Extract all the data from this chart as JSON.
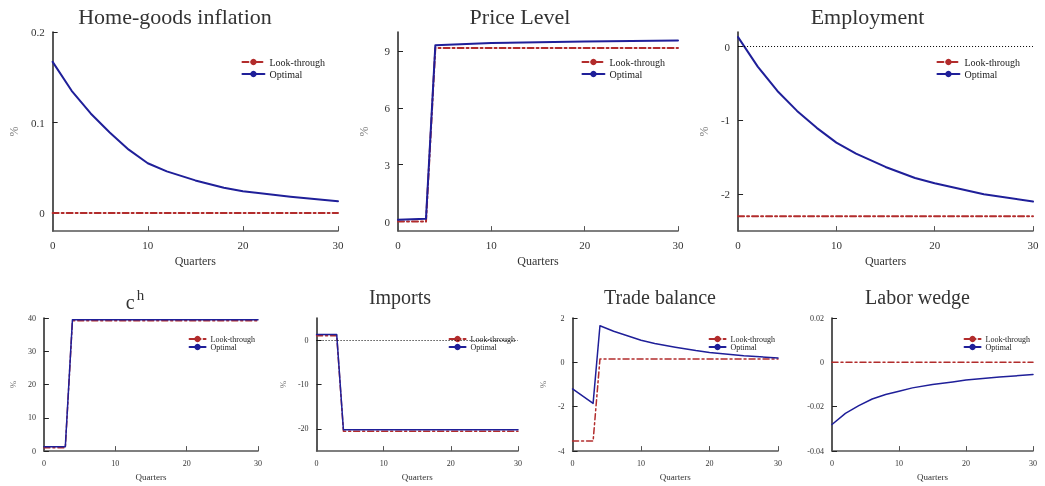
{
  "chart_data": [
    {
      "type": "line",
      "title": "Home-goods inflation",
      "xlabel": "Quarters",
      "ylabel": "%",
      "xlim": [
        0,
        30
      ],
      "xticks": [
        0,
        10,
        20,
        30
      ],
      "ylim": [
        -0.02,
        0.2
      ],
      "yticks": [
        0,
        0.1,
        0.2
      ],
      "legend": "top right",
      "marker": "none",
      "grid": false,
      "series": [
        {
          "name": "Look-through",
          "color": "#b22c2c",
          "line_style": "dashed",
          "x": [
            0,
            30
          ],
          "values": [
            0,
            0
          ]
        },
        {
          "name": "Optimal",
          "color": "#1f1f99",
          "line_style": "solid",
          "x": [
            0,
            2,
            4,
            6,
            8,
            10,
            12,
            15,
            18,
            20,
            25,
            30
          ],
          "values": [
            0.167,
            0.135,
            0.11,
            0.089,
            0.07,
            0.055,
            0.046,
            0.036,
            0.028,
            0.024,
            0.018,
            0.013
          ]
        }
      ]
    },
    {
      "type": "line",
      "title": "Price Level",
      "xlabel": "Quarters",
      "ylabel": "%",
      "xlim": [
        0,
        30
      ],
      "xticks": [
        0,
        10,
        20,
        30
      ],
      "ylim": [
        -0.5,
        10
      ],
      "yticks": [
        0,
        3,
        6,
        9
      ],
      "legend": "top right",
      "marker": "none",
      "grid": false,
      "series": [
        {
          "name": "Look-through",
          "color": "#b22c2c",
          "line_style": "dashed",
          "x": [
            0,
            3,
            4,
            30
          ],
          "values": [
            0,
            0,
            9.15,
            9.15
          ]
        },
        {
          "name": "Optimal",
          "color": "#1f1f99",
          "line_style": "solid",
          "x": [
            0,
            3,
            4,
            10,
            20,
            30
          ],
          "values": [
            0.1,
            0.15,
            9.3,
            9.42,
            9.5,
            9.55
          ]
        }
      ]
    },
    {
      "type": "line",
      "title": "Employment",
      "xlabel": "Quarters",
      "ylabel": "%",
      "xlim": [
        0,
        30
      ],
      "xticks": [
        0,
        10,
        20,
        30
      ],
      "ylim": [
        -2.5,
        0.2
      ],
      "yticks": [
        -2,
        -1,
        0
      ],
      "legend": "top right",
      "marker": "none",
      "grid": false,
      "ref_lines": [
        {
          "axis": "y",
          "value": 0,
          "line_style": "dotted",
          "color": "#000000"
        }
      ],
      "series": [
        {
          "name": "Look-through",
          "color": "#b22c2c",
          "line_style": "dashed",
          "x": [
            0,
            30
          ],
          "values": [
            -2.3,
            -2.3
          ]
        },
        {
          "name": "Optimal",
          "color": "#1f1f99",
          "line_style": "solid",
          "x": [
            0,
            2,
            4,
            6,
            8,
            10,
            12,
            15,
            18,
            20,
            25,
            30
          ],
          "values": [
            0.13,
            -0.27,
            -0.6,
            -0.87,
            -1.1,
            -1.3,
            -1.45,
            -1.63,
            -1.78,
            -1.85,
            -2.0,
            -2.1
          ]
        }
      ]
    },
    {
      "type": "line",
      "title": "c$^{h}$",
      "xlabel": "Quarters",
      "ylabel": "%",
      "xlim": [
        0,
        30
      ],
      "xticks": [
        0,
        10,
        20,
        30
      ],
      "ylim": [
        0,
        40
      ],
      "yticks": [
        0,
        10,
        20,
        30,
        40
      ],
      "legend": "top right",
      "marker": "none",
      "grid": false,
      "series": [
        {
          "name": "Look-through",
          "color": "#b22c2c",
          "line_style": "dashed",
          "x": [
            0,
            3,
            4,
            30
          ],
          "values": [
            1,
            1,
            39.2,
            39.2
          ]
        },
        {
          "name": "Optimal",
          "color": "#1f1f99",
          "line_style": "solid",
          "x": [
            0,
            3,
            4,
            30
          ],
          "values": [
            1.3,
            1.3,
            39.5,
            39.5
          ]
        }
      ]
    },
    {
      "type": "line",
      "title": "Imports",
      "xlabel": "Quarters",
      "ylabel": "%",
      "xlim": [
        0,
        30
      ],
      "xticks": [
        0,
        10,
        20,
        30
      ],
      "ylim": [
        -25,
        5
      ],
      "yticks": [
        -20,
        -10,
        0
      ],
      "legend": "top right",
      "marker": "none",
      "grid": false,
      "ref_lines": [
        {
          "axis": "y",
          "value": 0,
          "line_style": "dotted",
          "color": "#000000"
        }
      ],
      "series": [
        {
          "name": "Look-through",
          "color": "#b22c2c",
          "line_style": "dashed",
          "x": [
            0,
            3,
            4,
            30
          ],
          "values": [
            1,
            1,
            -20.5,
            -20.5
          ]
        },
        {
          "name": "Optimal",
          "color": "#1f1f99",
          "line_style": "solid",
          "x": [
            0,
            3,
            4,
            30
          ],
          "values": [
            1.3,
            1.3,
            -20.2,
            -20.2
          ]
        }
      ]
    },
    {
      "type": "line",
      "title": "Trade balance",
      "xlabel": "Quarters",
      "ylabel": "%",
      "xlim": [
        0,
        30
      ],
      "xticks": [
        0,
        10,
        20,
        30
      ],
      "ylim": [
        -4,
        2
      ],
      "yticks": [
        -4,
        -2,
        0,
        2
      ],
      "legend": "top right",
      "marker": "none",
      "grid": false,
      "series": [
        {
          "name": "Look-through",
          "color": "#b22c2c",
          "line_style": "dashed",
          "x": [
            0,
            3,
            4,
            30
          ],
          "values": [
            -3.55,
            -3.55,
            0.15,
            0.15
          ]
        },
        {
          "name": "Optimal",
          "color": "#1f1f99",
          "line_style": "solid",
          "x": [
            0,
            3,
            4,
            6,
            8,
            10,
            12,
            15,
            18,
            20,
            25,
            30
          ],
          "values": [
            -1.2,
            -1.85,
            1.65,
            1.4,
            1.2,
            1.0,
            0.85,
            0.68,
            0.53,
            0.45,
            0.3,
            0.2
          ]
        }
      ]
    },
    {
      "type": "line",
      "title": "Labor wedge",
      "xlabel": "Quarters",
      "xlim": [
        0,
        30
      ],
      "xticks": [
        0,
        10,
        20,
        30
      ],
      "ylim": [
        -0.04,
        0.02
      ],
      "yticks": [
        -0.04,
        -0.02,
        0,
        0.02
      ],
      "legend": "top right",
      "marker": "none",
      "grid": false,
      "series": [
        {
          "name": "Look-through",
          "color": "#b22c2c",
          "line_style": "dashed",
          "x": [
            0,
            30
          ],
          "values": [
            0,
            0
          ]
        },
        {
          "name": "Optimal",
          "color": "#1f1f99",
          "line_style": "solid",
          "x": [
            0,
            2,
            4,
            6,
            8,
            10,
            12,
            15,
            18,
            20,
            25,
            30
          ],
          "values": [
            -0.028,
            -0.023,
            -0.0195,
            -0.0165,
            -0.0145,
            -0.013,
            -0.0115,
            -0.01,
            -0.0088,
            -0.008,
            -0.0066,
            -0.0055
          ]
        }
      ]
    }
  ]
}
